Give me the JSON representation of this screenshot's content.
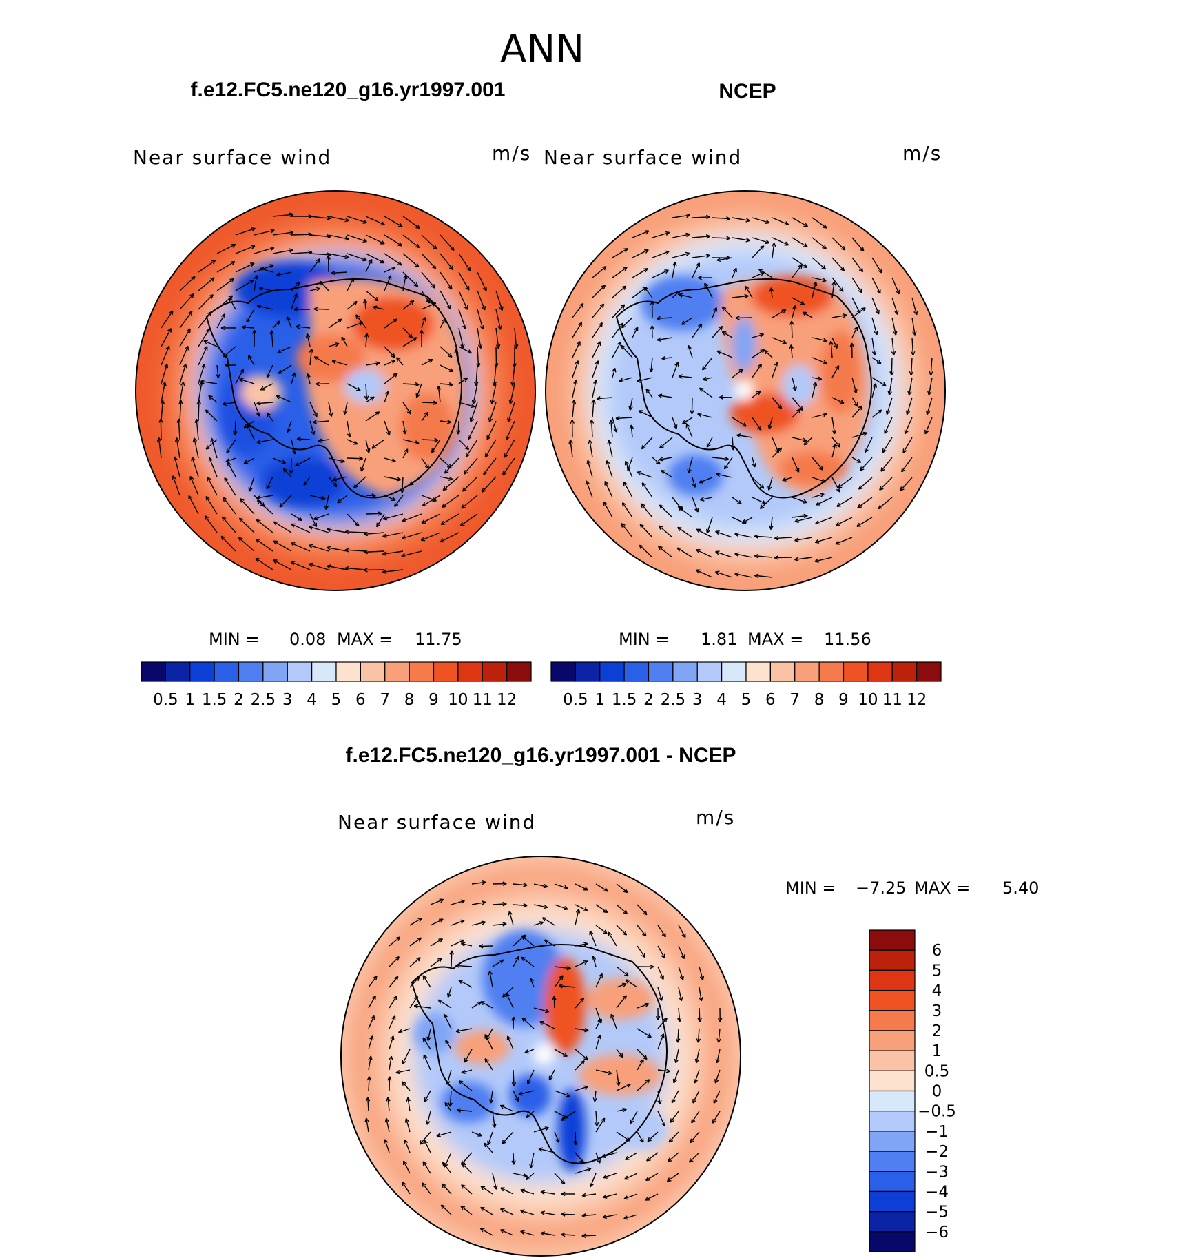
{
  "page_title": "ANN",
  "panels": [
    {
      "id": "model",
      "title": "f.e12.FC5.ne120_g16.yr1997.001",
      "variable": "Near surface wind",
      "units": "m/s",
      "stats": {
        "min_label": "MIN =",
        "min": "0.08",
        "max_label": "MAX =",
        "max": "11.75"
      }
    },
    {
      "id": "obs",
      "title": "NCEP",
      "variable": "Near surface wind",
      "units": "m/s",
      "stats": {
        "min_label": "MIN =",
        "min": "1.81",
        "max_label": "MAX =",
        "max": "11.56"
      }
    },
    {
      "id": "diff",
      "title": "f.e12.FC5.ne120_g16.yr1997.001 - NCEP",
      "variable": "Near surface wind",
      "units": "m/s",
      "stats": {
        "min_label": "MIN =",
        "min": "−7.25",
        "max_label": "MAX =",
        "max": "5.40"
      }
    }
  ],
  "colorbar_main": {
    "labels": [
      "0.5",
      "1",
      "1.5",
      "2",
      "2.5",
      "3",
      "4",
      "5",
      "6",
      "7",
      "8",
      "9",
      "10",
      "11",
      "12"
    ],
    "colors": [
      "#08086b",
      "#0b24a6",
      "#0c3fd6",
      "#2a5fe8",
      "#4f7ff0",
      "#80a5f5",
      "#b2c9f9",
      "#d8e8fb",
      "#fde2cf",
      "#fbc3a6",
      "#f8a07a",
      "#f57a4c",
      "#ef5324",
      "#de3512",
      "#bb210b",
      "#8a0c0c"
    ]
  },
  "colorbar_diff": {
    "labels": [
      "6",
      "5",
      "4",
      "3",
      "2",
      "1",
      "0.5",
      "0",
      "−0.5",
      "−1",
      "−2",
      "−3",
      "−4",
      "−5",
      "−6"
    ],
    "colors": [
      "#8a0c0c",
      "#bb210b",
      "#de3512",
      "#ef5324",
      "#f57a4c",
      "#f8a07a",
      "#fbc3a6",
      "#fde2cf",
      "#d8e8fb",
      "#b2c9f9",
      "#80a5f5",
      "#4f7ff0",
      "#2a5fe8",
      "#0c3fd6",
      "#0b24a6",
      "#08086b"
    ]
  }
}
